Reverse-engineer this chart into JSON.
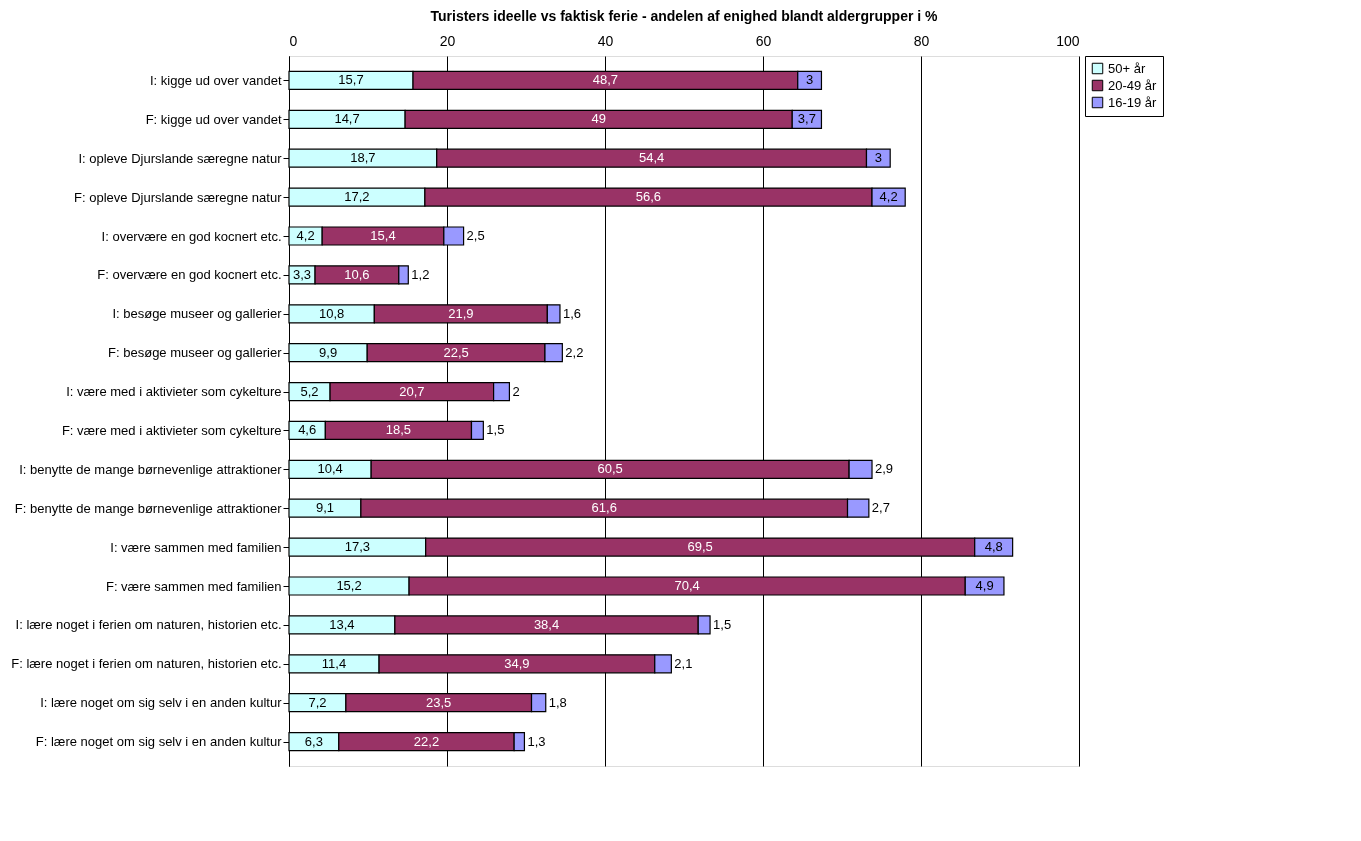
{
  "chart_data": {
    "type": "bar",
    "title": "Turisters ideelle vs faktisk ferie - andelen af enighed blandt aldergrupper i %",
    "orientation": "horizontal",
    "stacked": true,
    "grid": "x",
    "legend": "right",
    "categories": [
      "I: kigge ud over vandet",
      "F: kigge ud over vandet",
      "I: opleve Djurslande særegne natur",
      "F: opleve Djurslande særegne natur",
      "I: overvære en god kocnert etc.",
      "F: overvære en god kocnert etc.",
      "I: besøge museer og gallerier",
      "F: besøge museer og gallerier",
      "I: være med i aktivieter som cykelture",
      "F: være med i aktivieter som cykelture",
      "I: benytte de mange børnevenlige attraktioner",
      "F: benytte de mange børnevenlige attraktioner",
      "I: være sammen med familien",
      "F: være sammen med familien",
      "I: lære noget i ferien om naturen, historien etc.",
      "F: lære noget i ferien om naturen, historien etc.",
      "I: lære noget om sig selv i en anden kultur",
      "F: lære noget om sig selv i en anden kultur"
    ],
    "series": [
      {
        "name": "50+ år",
        "color": "#ccffff",
        "values": [
          15.7,
          14.7,
          18.7,
          17.2,
          4.2,
          3.3,
          10.8,
          9.9,
          5.2,
          4.6,
          10.4,
          9.1,
          17.3,
          15.2,
          13.4,
          11.4,
          7.2,
          6.3
        ],
        "value_labels": [
          "15,7",
          "14,7",
          "18,7",
          "17,2",
          "4,2",
          "3,3",
          "10,8",
          "9,9",
          "5,2",
          "4,6",
          "10,4",
          "9,1",
          "17,3",
          "15,2",
          "13,4",
          "11,4",
          "7,2",
          "6,3"
        ]
      },
      {
        "name": "20-49 år",
        "color": "#993366",
        "values": [
          48.7,
          49,
          54.4,
          56.6,
          15.4,
          10.6,
          21.9,
          22.5,
          20.7,
          18.5,
          60.5,
          61.6,
          69.5,
          70.4,
          38.4,
          34.9,
          23.5,
          22.2
        ],
        "value_labels": [
          "48,7",
          "49",
          "54,4",
          "56,6",
          "15,4",
          "10,6",
          "21,9",
          "22,5",
          "20,7",
          "18,5",
          "60,5",
          "61,6",
          "69,5",
          "70,4",
          "38,4",
          "34,9",
          "23,5",
          "22,2"
        ]
      },
      {
        "name": "16-19 år",
        "color": "#9999ff",
        "values": [
          3,
          3.7,
          3,
          4.2,
          2.5,
          1.2,
          1.6,
          2.2,
          2,
          1.5,
          2.9,
          2.7,
          4.8,
          4.9,
          1.5,
          2.1,
          1.8,
          1.3
        ],
        "value_labels": [
          "3",
          "3,7",
          "3",
          "4,2",
          "2,5",
          "1,2",
          "1,6",
          "2,2",
          "2",
          "1,5",
          "2,9",
          "2,7",
          "4,8",
          "4,9",
          "1,5",
          "2,1",
          "1,8",
          "1,3"
        ]
      }
    ],
    "xlim": [
      0,
      100
    ],
    "xticks": [
      0,
      20,
      40,
      60,
      80,
      100
    ]
  }
}
